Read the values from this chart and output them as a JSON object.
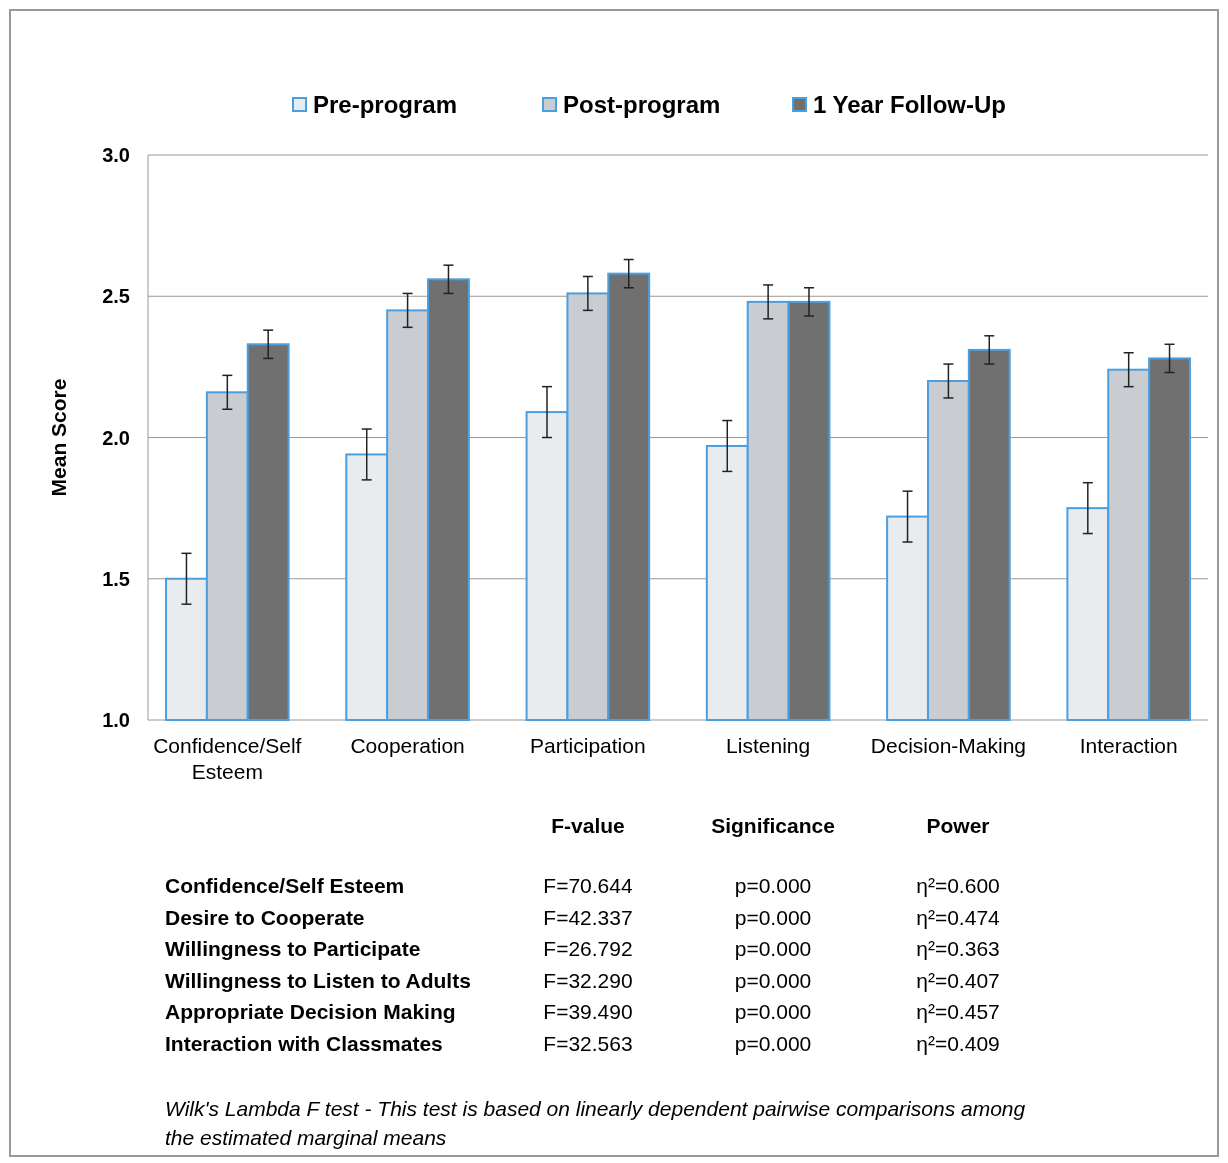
{
  "chart_data": {
    "type": "bar",
    "ylabel": "Mean Score",
    "categories": [
      "Confidence/Self Esteem",
      "Cooperation",
      "Participation",
      "Listening",
      "Decision-Making",
      "Interaction"
    ],
    "series": [
      {
        "name": "Pre-program",
        "color": "#e8ecef",
        "values": [
          1.5,
          1.94,
          2.09,
          1.97,
          1.72,
          1.75
        ],
        "errors": [
          0.09,
          0.09,
          0.09,
          0.09,
          0.09,
          0.09
        ]
      },
      {
        "name": "Post-program",
        "color": "#c9cdd1",
        "values": [
          2.16,
          2.45,
          2.51,
          2.48,
          2.2,
          2.24
        ],
        "errors": [
          0.06,
          0.06,
          0.06,
          0.06,
          0.06,
          0.06
        ]
      },
      {
        "name": "1 Year Follow-Up",
        "color": "#707070",
        "values": [
          2.33,
          2.56,
          2.58,
          2.48,
          2.31,
          2.28
        ],
        "errors": [
          0.05,
          0.05,
          0.05,
          0.05,
          0.05,
          0.05
        ]
      }
    ],
    "ylim": [
      1.0,
      3.0
    ],
    "yticks": [
      {
        "value": 1,
        "label": "1.0"
      },
      {
        "value": 1.5,
        "label": "1.5"
      },
      {
        "value": 2,
        "label": "2.0"
      },
      {
        "value": 2.5,
        "label": "2.5"
      },
      {
        "value": 3,
        "label": "3.0"
      }
    ],
    "grid": "y",
    "legend": "top",
    "annotations": [
      "F-value",
      "Significance",
      "Power",
      "Confidence/Self  Esteem",
      "F=70.644",
      "p=0.000",
      "η²=0.600",
      "Desire to Cooperate",
      "F=42.337",
      "p=0.000",
      "η²=0.474",
      "Willingness to Participate",
      "F=26.792",
      "p=0.000",
      "η²=0.363",
      "Willingness to Listen to Adults",
      "F=32.290",
      "p=0.000",
      "η²=0.407",
      "Appropriate Decision Making",
      "F=39.490",
      "p=0.000",
      "η²=0.457",
      "Interaction with Classmates",
      "F=32.563",
      "p=0.000",
      "η²=0.409",
      "Wilk's Lambda F test - This test is based on linearly dependent pairwise comparisons among the estimated marginal means"
    ]
  }
}
